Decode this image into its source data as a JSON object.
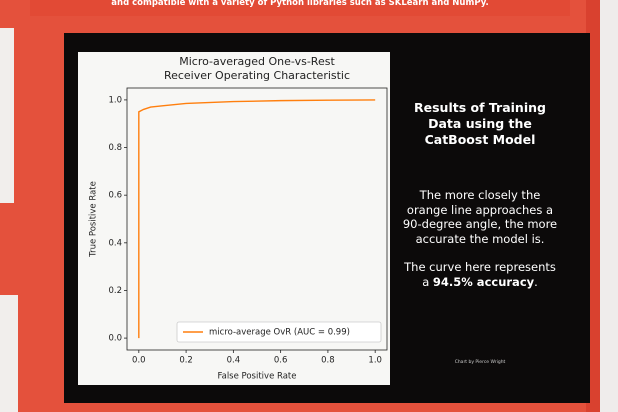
{
  "banner": "and compatible with a variety of Python libraries such as SKLearn and NumPy.",
  "side": {
    "title": "Results of Training Data using the CatBoost Model",
    "paragraph": "The more closely the orange line approaches a 90-degree angle, the more accurate the model is.",
    "curve_text": [
      "The curve here represents a",
      "94.5% accuracy",
      "."
    ],
    "credit": "Chart by Pierce Wright"
  },
  "chart_data": {
    "type": "line",
    "title": [
      "Micro-averaged One-vs-Rest",
      "Receiver Operating Characteristic"
    ],
    "x_label": "False Positive Rate",
    "y_label": "True Positive Rate",
    "x": [
      0,
      0,
      0.02,
      0.05,
      0.1,
      0.2,
      0.4,
      0.6,
      0.8,
      1.0
    ],
    "series": [
      {
        "name": "micro-average OvR (AUC = 0.99)",
        "color": "#ff7f0e",
        "values": [
          0,
          0.95,
          0.96,
          0.97,
          0.975,
          0.985,
          0.993,
          0.997,
          0.999,
          1.0
        ]
      }
    ],
    "xlim": [
      -0.05,
      1.05
    ],
    "ylim": [
      -0.05,
      1.05
    ],
    "xticks": [
      {
        "value": 0,
        "label": "0.0"
      },
      {
        "value": 0.2,
        "label": "0.2"
      },
      {
        "value": 0.4,
        "label": "0.4"
      },
      {
        "value": 0.6,
        "label": "0.6"
      },
      {
        "value": 0.8,
        "label": "0.8"
      },
      {
        "value": 1,
        "label": "1.0"
      }
    ],
    "yticks": [
      {
        "value": 0,
        "label": "0.0"
      },
      {
        "value": 0.2,
        "label": "0.2"
      },
      {
        "value": 0.4,
        "label": "0.4"
      },
      {
        "value": 0.6,
        "label": "0.6"
      },
      {
        "value": 0.8,
        "label": "0.8"
      },
      {
        "value": 1,
        "label": "1.0"
      }
    ],
    "grid": false,
    "legend": "lower right"
  }
}
